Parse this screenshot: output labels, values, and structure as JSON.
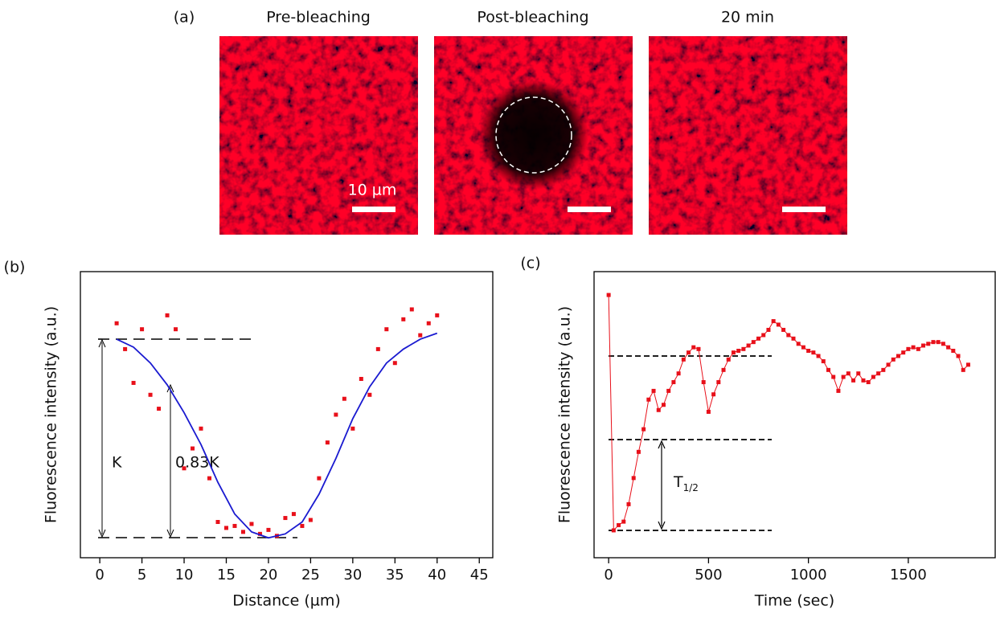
{
  "panel_a": {
    "label": "(a)",
    "images": [
      {
        "title": "Pre-bleaching",
        "scale_bar": "10 µm"
      },
      {
        "title": "Post-bleaching"
      },
      {
        "title": "20 min"
      }
    ]
  },
  "chart_data": [
    {
      "panel_label": "(b)",
      "type": "scatter",
      "xlabel": "Distance (µm)",
      "ylabel": "Fluorescence intensity (a.u.)",
      "xlim": [
        -2.3,
        46.6
      ],
      "ylim": [
        -0.1,
        1.34
      ],
      "xticks": [
        0,
        5,
        10,
        15,
        20,
        25,
        30,
        35,
        40,
        45
      ],
      "annotations": [
        "K",
        "0.83K"
      ],
      "series": [
        {
          "style": "markers",
          "color": "#e8101a",
          "x": [
            2,
            3,
            4,
            5,
            6,
            7,
            8,
            9,
            10,
            11,
            12,
            13,
            14,
            15,
            16,
            17,
            18,
            19,
            20,
            21,
            22,
            23,
            24,
            25,
            26,
            27,
            28,
            29,
            30,
            31,
            32,
            33,
            34,
            35,
            36,
            37,
            38,
            39,
            40
          ],
          "values": [
            1.08,
            0.95,
            0.78,
            1.05,
            0.72,
            0.65,
            1.12,
            1.05,
            0.35,
            0.45,
            0.55,
            0.3,
            0.08,
            0.05,
            0.06,
            0.03,
            0.07,
            0.02,
            0.04,
            0.01,
            0.1,
            0.12,
            0.06,
            0.09,
            0.3,
            0.48,
            0.62,
            0.7,
            0.55,
            0.8,
            0.72,
            0.95,
            1.05,
            0.88,
            1.1,
            1.15,
            1.02,
            1.08,
            1.12
          ]
        },
        {
          "style": "line",
          "color": "#1a1ad0",
          "x": [
            2,
            4,
            6,
            8,
            10,
            12,
            14,
            16,
            18,
            20,
            22,
            24,
            26,
            28,
            30,
            32,
            34,
            36,
            38,
            40
          ],
          "values": [
            1.0,
            0.96,
            0.88,
            0.77,
            0.63,
            0.47,
            0.28,
            0.12,
            0.03,
            0.0,
            0.02,
            0.08,
            0.22,
            0.4,
            0.6,
            0.76,
            0.88,
            0.95,
            1.0,
            1.03
          ]
        }
      ]
    },
    {
      "panel_label": "(c)",
      "type": "scatter",
      "xlabel": "Time (sec)",
      "ylabel": "Fluorescence intensity (a.u.)",
      "xlim": [
        -73,
        1935
      ],
      "ylim": [
        -0.157,
        1.484
      ],
      "xticks": [
        0,
        500,
        1000,
        1500
      ],
      "annotations": [
        {
          "text": "T",
          "subscript": "1/2"
        }
      ],
      "series": [
        {
          "style": "markers-line",
          "color": "#e8101a",
          "x": [
            0,
            25,
            50,
            75,
            100,
            125,
            150,
            175,
            200,
            225,
            250,
            275,
            300,
            325,
            350,
            375,
            400,
            425,
            450,
            475,
            500,
            525,
            550,
            575,
            600,
            625,
            650,
            675,
            700,
            725,
            750,
            775,
            800,
            825,
            850,
            875,
            900,
            925,
            950,
            975,
            1000,
            1025,
            1050,
            1075,
            1100,
            1125,
            1150,
            1175,
            1200,
            1225,
            1250,
            1275,
            1300,
            1325,
            1350,
            1375,
            1400,
            1425,
            1450,
            1475,
            1500,
            1525,
            1550,
            1575,
            1600,
            1625,
            1650,
            1675,
            1700,
            1725,
            1750,
            1775,
            1800
          ],
          "values": [
            1.35,
            0.0,
            0.03,
            0.05,
            0.15,
            0.3,
            0.45,
            0.58,
            0.75,
            0.8,
            0.69,
            0.72,
            0.8,
            0.85,
            0.9,
            0.98,
            1.02,
            1.05,
            1.04,
            0.85,
            0.68,
            0.78,
            0.85,
            0.92,
            0.98,
            1.02,
            1.03,
            1.04,
            1.06,
            1.08,
            1.1,
            1.12,
            1.15,
            1.2,
            1.18,
            1.15,
            1.12,
            1.1,
            1.07,
            1.05,
            1.03,
            1.02,
            1.0,
            0.97,
            0.92,
            0.88,
            0.8,
            0.88,
            0.9,
            0.86,
            0.9,
            0.86,
            0.85,
            0.88,
            0.9,
            0.92,
            0.95,
            0.98,
            1.0,
            1.02,
            1.04,
            1.05,
            1.04,
            1.06,
            1.07,
            1.08,
            1.08,
            1.07,
            1.05,
            1.03,
            1.0,
            0.92,
            0.95
          ]
        }
      ]
    }
  ]
}
